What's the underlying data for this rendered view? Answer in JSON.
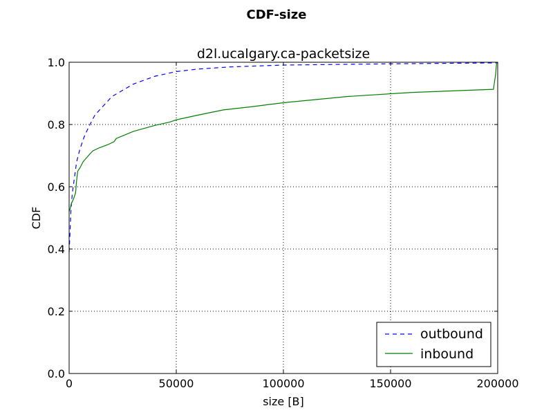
{
  "figure_title": "CDF-size",
  "chart_data": {
    "type": "line",
    "title": "d2l.ucalgary.ca-packetsize",
    "xlabel": "size [B]",
    "ylabel": "CDF",
    "xlim": [
      0,
      200000
    ],
    "ylim": [
      0,
      1.0
    ],
    "grid": true,
    "legend_position": "bottom-right",
    "x_ticks": [
      0,
      50000,
      100000,
      150000,
      200000
    ],
    "x_tick_labels": [
      "0",
      "50000",
      "100000",
      "150000",
      "200000"
    ],
    "y_ticks": [
      0,
      0.2,
      0.4,
      0.6,
      0.8,
      1.0
    ],
    "y_tick_labels": [
      "0.0",
      "0.2",
      "0.4",
      "0.6",
      "0.8",
      "1.0"
    ],
    "series": [
      {
        "name": "outbound",
        "color": "#0000ff",
        "style": "dashed",
        "points": [
          [
            0,
            0.39
          ],
          [
            400,
            0.45
          ],
          [
            800,
            0.52
          ],
          [
            1500,
            0.58
          ],
          [
            2500,
            0.63
          ],
          [
            3500,
            0.68
          ],
          [
            5000,
            0.72
          ],
          [
            7000,
            0.76
          ],
          [
            9000,
            0.79
          ],
          [
            12000,
            0.83
          ],
          [
            16000,
            0.86
          ],
          [
            20000,
            0.89
          ],
          [
            25000,
            0.91
          ],
          [
            30000,
            0.93
          ],
          [
            40000,
            0.955
          ],
          [
            50000,
            0.97
          ],
          [
            60000,
            0.978
          ],
          [
            75000,
            0.985
          ],
          [
            100000,
            0.991
          ],
          [
            150000,
            0.995
          ],
          [
            200000,
            0.998
          ]
        ]
      },
      {
        "name": "inbound",
        "color": "#008000",
        "style": "solid",
        "points": [
          [
            0,
            0.52
          ],
          [
            500,
            0.53
          ],
          [
            1000,
            0.545
          ],
          [
            2000,
            0.56
          ],
          [
            3000,
            0.58
          ],
          [
            3500,
            0.62
          ],
          [
            4000,
            0.65
          ],
          [
            5000,
            0.66
          ],
          [
            6500,
            0.68
          ],
          [
            9000,
            0.7
          ],
          [
            11000,
            0.715
          ],
          [
            14000,
            0.725
          ],
          [
            18000,
            0.735
          ],
          [
            21000,
            0.745
          ],
          [
            22000,
            0.755
          ],
          [
            30000,
            0.778
          ],
          [
            40000,
            0.797
          ],
          [
            47000,
            0.808
          ],
          [
            50000,
            0.815
          ],
          [
            60000,
            0.83
          ],
          [
            72000,
            0.847
          ],
          [
            85000,
            0.857
          ],
          [
            100000,
            0.87
          ],
          [
            130000,
            0.89
          ],
          [
            160000,
            0.903
          ],
          [
            198000,
            0.913
          ],
          [
            199000,
            0.96
          ],
          [
            199500,
            1.0
          ]
        ]
      }
    ]
  }
}
